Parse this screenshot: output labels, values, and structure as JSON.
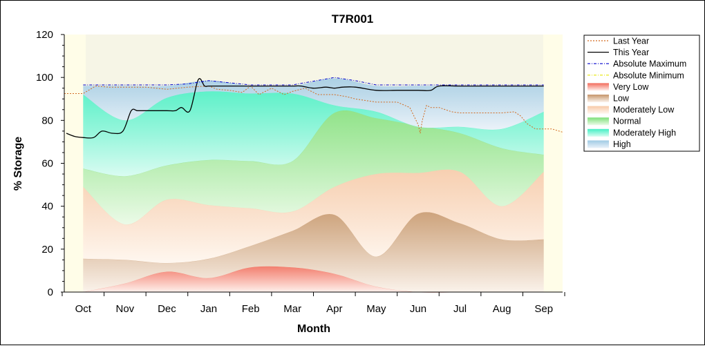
{
  "chart_data": {
    "type": "area",
    "title": "T7R001",
    "xlabel": "Month",
    "ylabel": "% Storage",
    "ylim": [
      0,
      120
    ],
    "yticks": [
      0,
      20,
      40,
      60,
      80,
      100,
      120
    ],
    "x_unit": "month index (Oct = 0 ... Sep = 11)",
    "xlim": [
      -0.45,
      11.45
    ],
    "categories": [
      "Oct",
      "Nov",
      "Dec",
      "Jan",
      "Feb",
      "Mar",
      "Apr",
      "May",
      "Jun",
      "Jul",
      "Aug",
      "Sep"
    ],
    "legend_position": "right",
    "bands": [
      {
        "name": "Very Low",
        "color": "#f26b5b",
        "light": "#fff3ef",
        "lower": "zero",
        "upper": [
          0,
          4,
          9.5,
          6.5,
          11.5,
          11.5,
          8.5,
          2.5,
          0,
          0,
          0,
          0
        ]
      },
      {
        "name": "Low",
        "color": "#c6956a",
        "light": "#fbf3ec",
        "lower": "Very Low",
        "upper": [
          15.5,
          15,
          13.5,
          15.5,
          21.5,
          28.5,
          36,
          16.5,
          36.5,
          32,
          24.5,
          24.5
        ]
      },
      {
        "name": "Moderately Low",
        "color": "#f7c9a8",
        "light": "#fff7f0",
        "lower": "Low",
        "upper": [
          49,
          31.5,
          43,
          40.5,
          39,
          37.5,
          49,
          55,
          55.5,
          56,
          40,
          56
        ]
      },
      {
        "name": "Normal",
        "color": "#80e07a",
        "light": "#ebfbe8",
        "lower": "Moderately Low",
        "upper": [
          57.5,
          54,
          59,
          61.5,
          61,
          61,
          83.5,
          81,
          77.5,
          74,
          67,
          64
        ]
      },
      {
        "name": "Moderately High",
        "color": "#44f0c4",
        "light": "#d8fcf2",
        "lower": "Normal",
        "upper": [
          92,
          80,
          90.5,
          93.5,
          92.5,
          92.5,
          87,
          84,
          77,
          77,
          76,
          84
        ]
      },
      {
        "name": "High",
        "color": "#9fcae4",
        "light": "#eaf2fa",
        "lower": "Moderately High",
        "upper": [
          96,
          96,
          96,
          98.5,
          96,
          96,
          99.5,
          96,
          96,
          96,
          96,
          96
        ]
      }
    ],
    "lines": [
      {
        "name": "Last Year",
        "color": "#d2691e",
        "style": "dotted",
        "x": [
          -0.45,
          0,
          0.3,
          0.6,
          1,
          1.5,
          2,
          2.5,
          3,
          3.2,
          3.5,
          3.8,
          4,
          4.2,
          4.5,
          4.8,
          5,
          5.3,
          5.6,
          6,
          6.3,
          6.5,
          7,
          7.5,
          7.8,
          8,
          8.05,
          8.1,
          8.2,
          8.3,
          8.5,
          8.8,
          9,
          9.5,
          10,
          10.3,
          10.45,
          10.6,
          10.8,
          11,
          11.2,
          11.45
        ],
        "y": [
          92.5,
          92.5,
          96,
          95.5,
          95.5,
          95.5,
          94.5,
          95.5,
          96,
          94.5,
          94,
          93,
          96,
          92,
          95,
          92,
          93.5,
          95,
          92,
          92,
          91,
          90,
          88.5,
          88.5,
          86,
          78,
          74,
          80,
          87,
          86,
          86,
          84,
          83.5,
          83.5,
          83.5,
          84,
          82,
          78.5,
          76,
          76,
          76,
          74.5
        ]
      },
      {
        "name": "This Year",
        "color": "#000000",
        "style": "solid",
        "x": [
          -0.4,
          -0.2,
          0,
          0.25,
          0.45,
          0.7,
          0.95,
          1.15,
          1.3,
          1.5,
          2,
          2.2,
          2.35,
          2.55,
          2.75,
          2.9,
          3,
          3.3,
          3.6,
          4,
          4.5,
          5,
          5.2,
          5.5,
          5.8,
          6,
          6.2,
          6.5,
          7,
          7.5,
          8,
          8.3,
          8.5,
          9,
          10,
          11
        ],
        "y": [
          74,
          72.5,
          72,
          72,
          75,
          74,
          75,
          84.5,
          84.5,
          84.5,
          84.5,
          84.5,
          86,
          84.5,
          99,
          96,
          96,
          96,
          96,
          96,
          96,
          96,
          96,
          95,
          95.5,
          95,
          95.5,
          95.5,
          94,
          94,
          94,
          94,
          96,
          96,
          96,
          96
        ]
      },
      {
        "name": "Absolute Maximum",
        "color": "#0000cc",
        "style": "dashdot",
        "x": [
          0,
          1,
          2,
          2.5,
          3,
          3.5,
          4,
          5,
          6,
          6.5,
          7,
          8,
          9,
          10,
          11
        ],
        "y": [
          96.5,
          96.5,
          96.5,
          97,
          98.5,
          97.5,
          96.5,
          96.5,
          100,
          98.5,
          96.5,
          96.5,
          96.5,
          96.5,
          96.5
        ]
      },
      {
        "name": "Absolute Minimum",
        "color": "#e6e600",
        "style": "dashdot",
        "x": [],
        "y": []
      },
      {
        "name": "High",
        "color": "#2244cc",
        "style": "dashdot",
        "x": [],
        "y": []
      }
    ],
    "legend": [
      "Last Year",
      "This Year",
      "Absolute Maximum",
      "Absolute Minimum",
      "Very Low",
      "Low",
      "Moderately Low",
      "Normal",
      "Moderately High",
      "High"
    ]
  }
}
